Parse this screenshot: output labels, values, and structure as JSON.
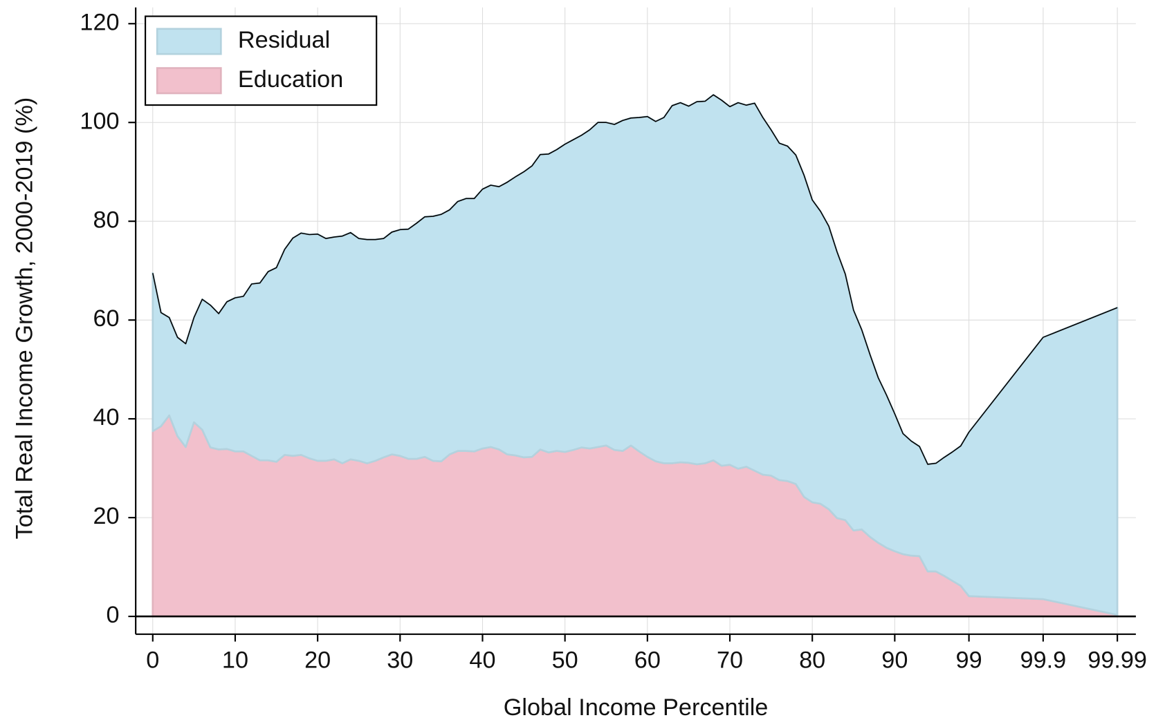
{
  "chart_data": {
    "type": "stacked-area",
    "xlabel": "Global Income Percentile",
    "ylabel": "Total Real Income Growth, 2000-2019 (%)",
    "x": [
      0,
      1,
      2,
      3,
      4,
      5,
      6,
      7,
      8,
      9,
      10,
      11,
      12,
      13,
      14,
      15,
      16,
      17,
      18,
      19,
      20,
      21,
      22,
      23,
      24,
      25,
      26,
      27,
      28,
      29,
      30,
      31,
      32,
      33,
      34,
      35,
      36,
      37,
      38,
      39,
      40,
      41,
      42,
      43,
      44,
      45,
      46,
      47,
      48,
      49,
      50,
      51,
      52,
      53,
      54,
      55,
      56,
      57,
      58,
      59,
      60,
      61,
      62,
      63,
      64,
      65,
      66,
      67,
      68,
      69,
      70,
      71,
      72,
      73,
      74,
      75,
      76,
      77,
      78,
      79,
      80,
      81,
      82,
      83,
      84,
      85,
      86,
      87,
      88,
      89,
      90,
      91,
      92,
      93,
      94,
      95,
      96,
      97,
      98,
      99,
      99.9,
      99.99
    ],
    "series": [
      {
        "name": "Residual",
        "color": "#c0e2ef",
        "values": [
          32,
          23,
          19.8,
          20,
          20.9,
          21.2,
          26.4,
          28.8,
          27.5,
          29.8,
          31.1,
          31.4,
          34.8,
          35.9,
          38.2,
          39.3,
          41.6,
          44.1,
          44.9,
          45.3,
          45.9,
          45,
          45,
          46,
          45.9,
          45,
          45.3,
          44.8,
          44.3,
          45,
          45.8,
          46.5,
          47.7,
          48.6,
          49.5,
          50,
          49.5,
          50.5,
          51.1,
          51.2,
          52.5,
          53,
          53.2,
          55.1,
          56.4,
          57.8,
          58.9,
          59.7,
          60.4,
          61,
          62.3,
          62.8,
          63.2,
          64.5,
          65.7,
          65.4,
          65.9,
          66.9,
          66.3,
          67.6,
          68.9,
          68.8,
          70,
          72.4,
          72.8,
          72.2,
          73.4,
          73.3,
          74,
          74,
          72.5,
          74.1,
          73.2,
          74.4,
          72.3,
          70,
          68.2,
          67.8,
          66.6,
          65.1,
          61.2,
          59.2,
          57.3,
          53.9,
          49.8,
          44.6,
          40.4,
          36.9,
          33.4,
          30.9,
          27.8,
          24.4,
          23.2,
          22.2,
          21.7,
          21.9,
          24,
          26.1,
          28.3,
          33.2,
          53,
          62.2
        ]
      },
      {
        "name": "Education",
        "color": "#f2c0cc",
        "values": [
          37.5,
          38.5,
          40.7,
          36.5,
          34.3,
          39.3,
          37.8,
          34.2,
          33.8,
          33.9,
          33.4,
          33.4,
          32.5,
          31.6,
          31.6,
          31.3,
          32.7,
          32.5,
          32.7,
          32,
          31.5,
          31.5,
          31.8,
          31,
          31.8,
          31.5,
          31,
          31.5,
          32.2,
          32.8,
          32.5,
          31.9,
          31.9,
          32.3,
          31.5,
          31.4,
          32.8,
          33.5,
          33.5,
          33.4,
          34,
          34.3,
          33.8,
          32.8,
          32.6,
          32.2,
          32.3,
          33.8,
          33.2,
          33.5,
          33.3,
          33.7,
          34.2,
          34,
          34.3,
          34.6,
          33.7,
          33.5,
          34.6,
          33.4,
          32.3,
          31.4,
          31,
          31,
          31.2,
          31.1,
          30.8,
          31,
          31.6,
          30.5,
          30.7,
          29.9,
          30.3,
          29.5,
          28.7,
          28.5,
          27.6,
          27.4,
          26.8,
          24.2,
          23.1,
          22.8,
          21.7,
          19.9,
          19.5,
          17.4,
          17.6,
          16.1,
          14.9,
          13.9,
          13.2,
          12.6,
          12.3,
          12.2,
          9.1,
          9.1,
          8.2,
          7.2,
          6.2,
          4.1,
          3.5,
          0.3
        ]
      }
    ],
    "xlim": [
      0,
      99.99
    ],
    "xticks": [
      0,
      10,
      20,
      30,
      40,
      50,
      60,
      70,
      80,
      90,
      99,
      99.9,
      99.99
    ],
    "ylim": [
      0,
      120
    ],
    "yticks": [
      0,
      20,
      40,
      60,
      80,
      100,
      120
    ],
    "grid": true,
    "legend": "upper left"
  }
}
